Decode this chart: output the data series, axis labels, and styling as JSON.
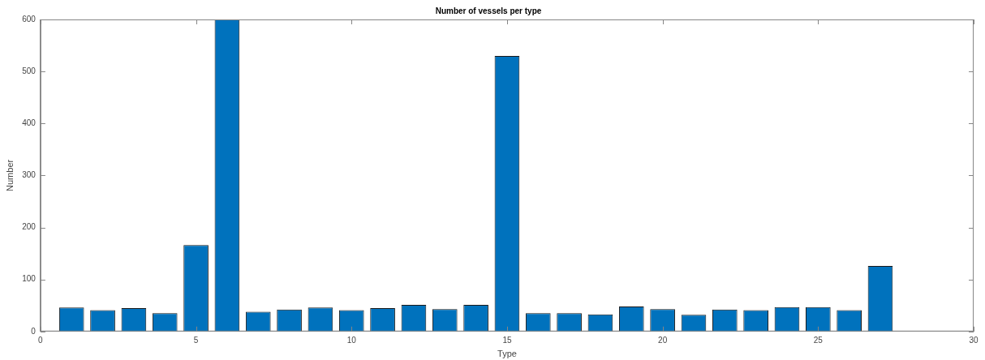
{
  "chart_data": {
    "type": "bar",
    "title": "Number of vessels per type",
    "xlabel": "Type",
    "ylabel": "Number",
    "x": [
      1,
      2,
      3,
      4,
      5,
      6,
      7,
      8,
      9,
      10,
      11,
      12,
      13,
      14,
      15,
      16,
      17,
      18,
      19,
      20,
      21,
      22,
      23,
      24,
      25,
      26,
      27
    ],
    "values": [
      46,
      41,
      45,
      35,
      166,
      600,
      38,
      42,
      46,
      41,
      45,
      51,
      43,
      51,
      530,
      35,
      35,
      33,
      48,
      43,
      32,
      42,
      41,
      47,
      47,
      41,
      126
    ],
    "color": "#0072bd",
    "xlim": [
      0,
      30
    ],
    "xticks": [
      0,
      5,
      10,
      15,
      20,
      25,
      30
    ],
    "ylim": [
      0,
      600
    ],
    "yticks": [
      0,
      100,
      200,
      300,
      400,
      500,
      600
    ],
    "grid": false,
    "legend": false
  }
}
